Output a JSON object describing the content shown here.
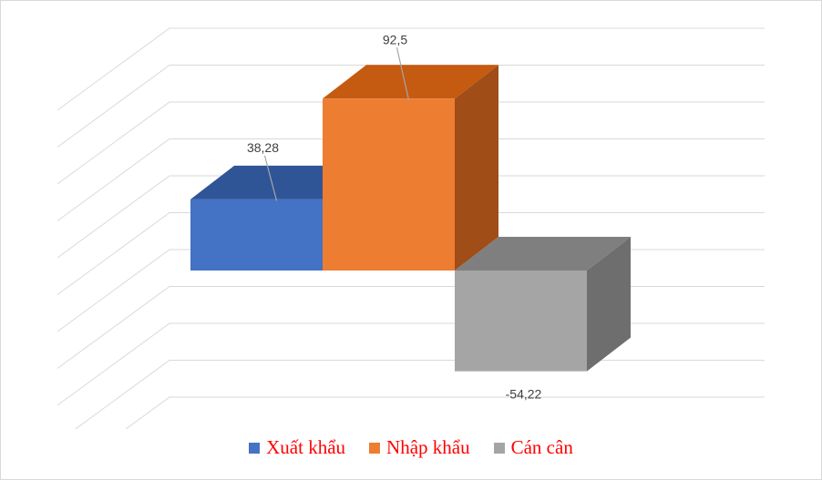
{
  "chart_data": {
    "type": "bar",
    "style": "3d-clustered-column",
    "series": [
      {
        "name": "Xuất khẩu",
        "value": 38.28,
        "label": "38,28",
        "color": "#4472c4",
        "top_color": "#2f5597",
        "side_color": "#2f5597"
      },
      {
        "name": "Nhập khẩu",
        "value": 92.5,
        "label": "92,5",
        "color": "#ed7d31",
        "top_color": "#c55a11",
        "side_color": "#a04d18"
      },
      {
        "name": "Cán cân",
        "value": -54.22,
        "label": "-54,22",
        "color": "#a5a5a5",
        "top_color": "#7f7f7f",
        "side_color": "#6e6e6e"
      }
    ],
    "ylim": [
      -100,
      120
    ],
    "gridlines": true,
    "axis_tick_labels": false,
    "legend_position": "bottom",
    "legend_text_color": "#ff0000"
  }
}
